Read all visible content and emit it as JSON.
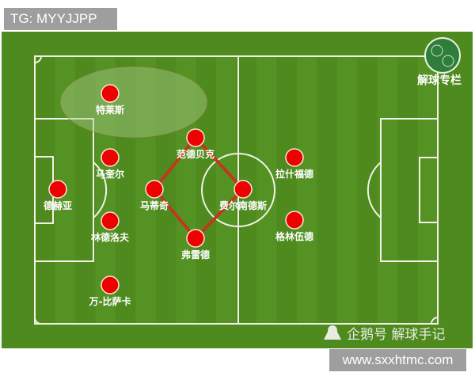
{
  "top_badge": "TG: MYYJJPP",
  "bottom_badge": "www.sxxhtmc.com",
  "logo_label": "解球专栏",
  "watermark": "企鹅号 解球手记",
  "colors": {
    "pitch": "#4e8a1e",
    "stripe": "#5a9828",
    "player": "#ee0000",
    "link": "#c0391b"
  },
  "players": [
    {
      "name": "特莱斯",
      "col": 1,
      "row": 0
    },
    {
      "name": "马奎尔",
      "col": 1,
      "row": 1
    },
    {
      "name": "德赫亚",
      "col": 0,
      "row": 2
    },
    {
      "name": "林德洛夫",
      "col": 1,
      "row": 3
    },
    {
      "name": "万-比萨卡",
      "col": 1,
      "row": 4
    },
    {
      "name": "范德贝克",
      "col": 3,
      "row": 1
    },
    {
      "name": "马蒂奇",
      "col": 2,
      "row": 2
    },
    {
      "name": "费尔南德斯",
      "col": 4,
      "row": 2
    },
    {
      "name": "弗雷德",
      "col": 3,
      "row": 3
    },
    {
      "name": "拉什福德",
      "col": 5,
      "row": 1
    },
    {
      "name": "格林伍德",
      "col": 5,
      "row": 3
    }
  ]
}
